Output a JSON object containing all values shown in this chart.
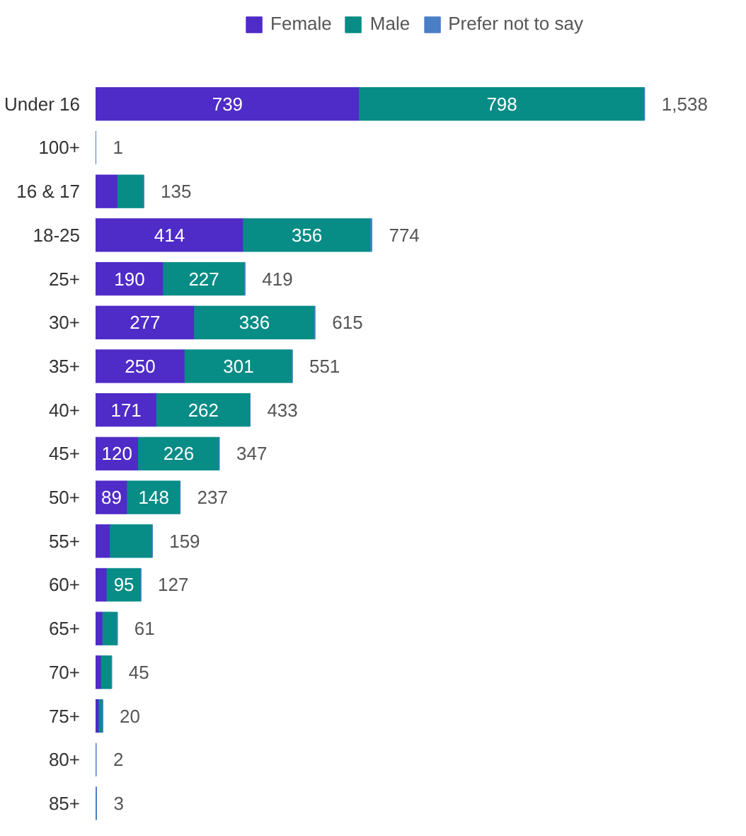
{
  "chart_data": {
    "type": "bar",
    "orientation": "horizontal",
    "stacked": true,
    "legend": "top",
    "grid": false,
    "tick_labels": "y",
    "categories": [
      "Under 16",
      "100+",
      "16 & 17",
      "18-25",
      "25+",
      "30+",
      "35+",
      "40+",
      "45+",
      "50+",
      "55+",
      "60+",
      "65+",
      "70+",
      "75+",
      "80+",
      "85+"
    ],
    "series": [
      {
        "name": "Female",
        "color": "#4f2bc7",
        "values": [
          739,
          0,
          62,
          414,
          190,
          277,
          250,
          171,
          120,
          89,
          41,
          32,
          20,
          16,
          10,
          0,
          0
        ],
        "value_labels": [
          "739",
          null,
          null,
          "414",
          "190",
          "277",
          "250",
          "171",
          "120",
          "89",
          null,
          null,
          null,
          null,
          null,
          null,
          null
        ]
      },
      {
        "name": "Male",
        "color": "#078c86",
        "values": [
          798,
          0,
          73,
          356,
          227,
          336,
          301,
          262,
          226,
          148,
          118,
          95,
          41,
          29,
          10,
          0,
          0
        ],
        "value_labels": [
          "798",
          null,
          null,
          "356",
          "227",
          "336",
          "301",
          "262",
          "226",
          "148",
          null,
          "95",
          null,
          null,
          null,
          null,
          null
        ]
      },
      {
        "name": "Prefer not to say",
        "color": "#4a7fc6",
        "values": [
          1,
          1,
          0,
          4,
          2,
          2,
          0,
          0,
          1,
          0,
          0,
          0,
          0,
          0,
          0,
          2,
          3
        ],
        "value_labels": [
          null,
          null,
          null,
          null,
          null,
          null,
          null,
          null,
          null,
          null,
          null,
          null,
          null,
          null,
          null,
          null,
          null
        ]
      }
    ],
    "totals": [
      "1,538",
      "1",
      "135",
      "774",
      "419",
      "615",
      "551",
      "433",
      "347",
      "237",
      "159",
      "127",
      "61",
      "45",
      "20",
      "2",
      "3"
    ]
  }
}
